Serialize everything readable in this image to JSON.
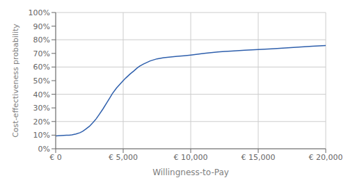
{
  "chart_data": {
    "type": "line",
    "xlabel": "Willingness-to-Pay",
    "ylabel": "Cost-effectiveness probability",
    "color": "#2E5FAC",
    "grid": true,
    "xlim": [
      0,
      20000
    ],
    "ylim": [
      0,
      1.0
    ],
    "xticks": [
      {
        "value": 0,
        "label": "€ 0"
      },
      {
        "value": 5000,
        "label": "€ 5,000"
      },
      {
        "value": 10000,
        "label": "€ 10,000"
      },
      {
        "value": 15000,
        "label": "€ 15,000"
      },
      {
        "value": 20000,
        "label": "€ 20,000"
      }
    ],
    "yticks": [
      {
        "value": 0.0,
        "label": "0%"
      },
      {
        "value": 0.1,
        "label": "10%"
      },
      {
        "value": 0.2,
        "label": "20%"
      },
      {
        "value": 0.3,
        "label": "30%"
      },
      {
        "value": 0.4,
        "label": "40%"
      },
      {
        "value": 0.5,
        "label": "50%"
      },
      {
        "value": 0.6,
        "label": "60%"
      },
      {
        "value": 0.7,
        "label": "70%"
      },
      {
        "value": 0.8,
        "label": "80%"
      },
      {
        "value": 0.9,
        "label": "90%"
      },
      {
        "value": 1.0,
        "label": "100%"
      }
    ],
    "x": [
      0,
      200,
      400,
      600,
      800,
      1000,
      1200,
      1500,
      1800,
      2000,
      2200,
      2500,
      2800,
      3000,
      3200,
      3500,
      3800,
      4000,
      4200,
      4500,
      4800,
      5000,
      5200,
      5500,
      5800,
      6000,
      6200,
      6500,
      7000,
      7500,
      8000,
      8500,
      9000,
      9500,
      10000,
      10500,
      11000,
      11500,
      12000,
      12500,
      13000,
      14000,
      15000,
      16000,
      17000,
      18000,
      19000,
      20000
    ],
    "values": [
      0.095,
      0.096,
      0.097,
      0.098,
      0.099,
      0.1,
      0.102,
      0.108,
      0.118,
      0.128,
      0.142,
      0.165,
      0.196,
      0.22,
      0.248,
      0.292,
      0.34,
      0.372,
      0.405,
      0.445,
      0.478,
      0.5,
      0.52,
      0.548,
      0.572,
      0.59,
      0.605,
      0.622,
      0.645,
      0.66,
      0.668,
      0.674,
      0.678,
      0.683,
      0.688,
      0.694,
      0.7,
      0.705,
      0.71,
      0.714,
      0.717,
      0.723,
      0.728,
      0.734,
      0.74,
      0.746,
      0.752,
      0.758
    ]
  }
}
